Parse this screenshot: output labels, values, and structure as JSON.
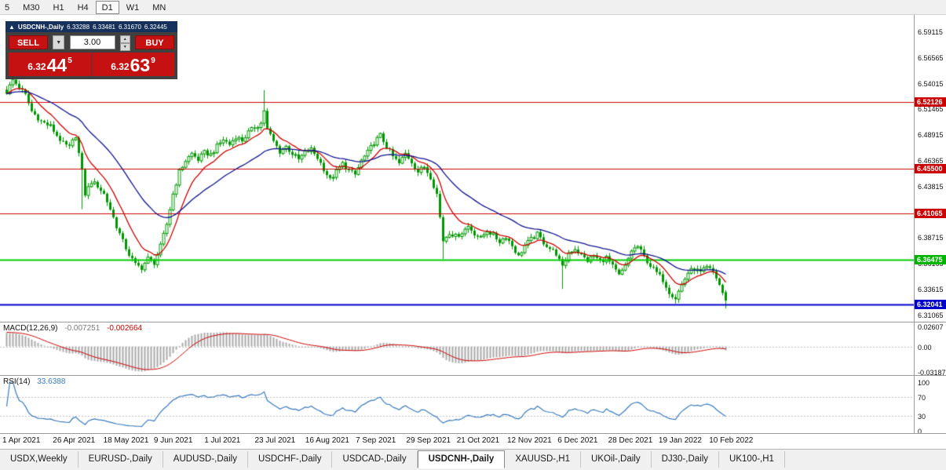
{
  "toolbar": {
    "timeframes": [
      {
        "label": "5",
        "active": false
      },
      {
        "label": "M30",
        "active": false
      },
      {
        "label": "H1",
        "active": false
      },
      {
        "label": "H4",
        "active": false
      },
      {
        "label": "D1",
        "active": true
      },
      {
        "label": "W1",
        "active": false
      },
      {
        "label": "MN",
        "active": false
      }
    ]
  },
  "chart_header": {
    "collapse_icon": "▲",
    "symbol": "USDCNH-,Daily",
    "open": "6.33288",
    "high": "6.33481",
    "low": "6.31670",
    "close": "6.32445"
  },
  "trade_panel": {
    "sell_label": "SELL",
    "buy_label": "BUY",
    "volume": "3.00",
    "dropdown_icon": "▼",
    "step_up_icon": "▲",
    "step_down_icon": "▼",
    "sell_price": {
      "small": "6.32",
      "big": "44",
      "sup": "5"
    },
    "buy_price": {
      "small": "6.32",
      "big": "63",
      "sup": "9"
    }
  },
  "indicators": {
    "macd": {
      "label": "MACD(12,26,9)",
      "value1": "-0.007251",
      "value2": "-0.002664",
      "axis": [
        "0.02607",
        "0.00",
        "-0.03187"
      ],
      "axis_values": [
        0.02607,
        0.0,
        -0.03187
      ]
    },
    "rsi": {
      "label": "RSI(14)",
      "value": "33.6388",
      "axis": [
        "100",
        "70",
        "30",
        "0"
      ],
      "axis_values": [
        100,
        70,
        30,
        0
      ],
      "levels": [
        70,
        30
      ]
    }
  },
  "price_axis": {
    "labels": [
      "6.59115",
      "6.56565",
      "6.54015",
      "6.51465",
      "6.48915",
      "6.46365",
      "6.43815",
      "6.41265",
      "6.38715",
      "6.36165",
      "6.33615",
      "6.31065"
    ],
    "badges": [
      {
        "value": "6.52126",
        "price": 6.52126,
        "color": "#cc0000"
      },
      {
        "value": "6.45500",
        "price": 6.455,
        "color": "#cc0000"
      },
      {
        "value": "6.41065",
        "price": 6.41065,
        "color": "#cc0000"
      },
      {
        "value": "6.36475",
        "price": 6.36475,
        "color": "#00b400"
      },
      {
        "value": "6.32041",
        "price": 6.32041,
        "color": "#0000cc"
      }
    ]
  },
  "dates": [
    "1 Apr 2021",
    "26 Apr 2021",
    "18 May 2021",
    "9 Jun 2021",
    "1 Jul 2021",
    "23 Jul 2021",
    "16 Aug 2021",
    "7 Sep 2021",
    "29 Sep 2021",
    "21 Oct 2021",
    "12 Nov 2021",
    "6 Dec 2021",
    "28 Dec 2021",
    "19 Jan 2022",
    "10 Feb 2022"
  ],
  "tabbar": {
    "tabs": [
      {
        "label": "USDX,Weekly",
        "active": false
      },
      {
        "label": "EURUSD-,Daily",
        "active": false
      },
      {
        "label": "AUDUSD-,Daily",
        "active": false
      },
      {
        "label": "USDCHF-,Daily",
        "active": false
      },
      {
        "label": "USDCAD-,Daily",
        "active": false
      },
      {
        "label": "USDCNH-,Daily",
        "active": true
      },
      {
        "label": "XAUUSD-,H1",
        "active": false
      },
      {
        "label": "UKOil-,Daily",
        "active": false
      },
      {
        "label": "DJ30-,Daily",
        "active": false
      },
      {
        "label": "UK100-,H1",
        "active": false
      }
    ]
  },
  "chart_data": {
    "type": "candlestick",
    "symbol": "USDCNH",
    "timeframe": "Daily",
    "ohlc_current": {
      "open": 6.33288,
      "high": 6.33481,
      "low": 6.3167,
      "close": 6.32445
    },
    "y_range": [
      6.3035,
      6.6075
    ],
    "num_candles": 230,
    "close_waypoints": [
      [
        0,
        6.531
      ],
      [
        2,
        6.543
      ],
      [
        4,
        6.536
      ],
      [
        6,
        6.528
      ],
      [
        8,
        6.512
      ],
      [
        11,
        6.502
      ],
      [
        14,
        6.497
      ],
      [
        16,
        6.488
      ],
      [
        18,
        6.48
      ],
      [
        20,
        6.476
      ],
      [
        22,
        6.488
      ],
      [
        23,
        6.47
      ],
      [
        24,
        6.452
      ],
      [
        25,
        6.43
      ],
      [
        27,
        6.442
      ],
      [
        29,
        6.438
      ],
      [
        31,
        6.43
      ],
      [
        33,
        6.415
      ],
      [
        35,
        6.398
      ],
      [
        37,
        6.383
      ],
      [
        39,
        6.37
      ],
      [
        41,
        6.36
      ],
      [
        43,
        6.357
      ],
      [
        45,
        6.366
      ],
      [
        47,
        6.362
      ],
      [
        49,
        6.378
      ],
      [
        51,
        6.4
      ],
      [
        53,
        6.43
      ],
      [
        55,
        6.452
      ],
      [
        57,
        6.463
      ],
      [
        59,
        6.47
      ],
      [
        61,
        6.464
      ],
      [
        63,
        6.471
      ],
      [
        65,
        6.469
      ],
      [
        67,
        6.477
      ],
      [
        69,
        6.484
      ],
      [
        71,
        6.479
      ],
      [
        73,
        6.487
      ],
      [
        75,
        6.483
      ],
      [
        77,
        6.491
      ],
      [
        79,
        6.496
      ],
      [
        81,
        6.5
      ],
      [
        82,
        6.513
      ],
      [
        83,
        6.494
      ],
      [
        85,
        6.482
      ],
      [
        87,
        6.472
      ],
      [
        89,
        6.477
      ],
      [
        91,
        6.47
      ],
      [
        93,
        6.464
      ],
      [
        95,
        6.471
      ],
      [
        97,
        6.474
      ],
      [
        99,
        6.466
      ],
      [
        101,
        6.455
      ],
      [
        103,
        6.444
      ],
      [
        105,
        6.452
      ],
      [
        107,
        6.46
      ],
      [
        109,
        6.453
      ],
      [
        111,
        6.449
      ],
      [
        113,
        6.463
      ],
      [
        115,
        6.471
      ],
      [
        117,
        6.481
      ],
      [
        119,
        6.488
      ],
      [
        121,
        6.477
      ],
      [
        123,
        6.467
      ],
      [
        125,
        6.46
      ],
      [
        127,
        6.47
      ],
      [
        129,
        6.462
      ],
      [
        131,
        6.452
      ],
      [
        133,
        6.457
      ],
      [
        135,
        6.447
      ],
      [
        137,
        6.43
      ],
      [
        139,
        6.384
      ],
      [
        141,
        6.392
      ],
      [
        143,
        6.388
      ],
      [
        145,
        6.392
      ],
      [
        147,
        6.398
      ],
      [
        149,
        6.391
      ],
      [
        151,
        6.386
      ],
      [
        153,
        6.394
      ],
      [
        155,
        6.389
      ],
      [
        157,
        6.383
      ],
      [
        159,
        6.388
      ],
      [
        161,
        6.379
      ],
      [
        163,
        6.368
      ],
      [
        165,
        6.379
      ],
      [
        167,
        6.385
      ],
      [
        169,
        6.39
      ],
      [
        171,
        6.382
      ],
      [
        173,
        6.376
      ],
      [
        175,
        6.371
      ],
      [
        177,
        6.357
      ],
      [
        179,
        6.372
      ],
      [
        181,
        6.376
      ],
      [
        183,
        6.369
      ],
      [
        185,
        6.364
      ],
      [
        187,
        6.369
      ],
      [
        189,
        6.363
      ],
      [
        191,
        6.367
      ],
      [
        193,
        6.358
      ],
      [
        195,
        6.349
      ],
      [
        197,
        6.358
      ],
      [
        199,
        6.374
      ],
      [
        201,
        6.378
      ],
      [
        203,
        6.368
      ],
      [
        205,
        6.359
      ],
      [
        207,
        6.352
      ],
      [
        209,
        6.345
      ],
      [
        211,
        6.333
      ],
      [
        213,
        6.327
      ],
      [
        215,
        6.34
      ],
      [
        217,
        6.352
      ],
      [
        219,
        6.356
      ],
      [
        221,
        6.352
      ],
      [
        223,
        6.357
      ],
      [
        225,
        6.353
      ],
      [
        226,
        6.347
      ],
      [
        227,
        6.34
      ],
      [
        228,
        6.332
      ],
      [
        229,
        6.32445
      ]
    ],
    "overrides": {
      "2": {
        "h": 6.546
      },
      "24": {
        "l": 6.415
      },
      "82": {
        "h": 6.533
      },
      "139": {
        "l": 6.3655
      },
      "177": {
        "l": 6.336
      },
      "213": {
        "l": 6.3215
      },
      "229": {
        "o": 6.33288,
        "h": 6.33481,
        "l": 6.3167,
        "c": 6.32445
      }
    },
    "hlines": [
      {
        "price": 6.52126,
        "color": "#cc0000",
        "width": 1
      },
      {
        "price": 6.455,
        "color": "#cc0000",
        "width": 1
      },
      {
        "price": 6.41065,
        "color": "#cc0000",
        "width": 1
      },
      {
        "price": 6.36475,
        "color": "#00cc00",
        "width": 2
      },
      {
        "price": 6.32041,
        "color": "#0000cc",
        "width": 2
      }
    ],
    "moving_averages": [
      {
        "color": "#cc0000",
        "alpha": 0.18
      },
      {
        "color": "#10128c",
        "alpha": 0.06
      }
    ],
    "macd_range": [
      -0.03187,
      0.02607
    ],
    "colors": {
      "candle": "#009600",
      "bull_fill": "#ffffff",
      "bear_fill": "#009600",
      "histogram": "#a8a8a8",
      "signal": "#cc0000",
      "rsi_line": "#3a7abd",
      "level_line": "#c0c0c0"
    }
  }
}
